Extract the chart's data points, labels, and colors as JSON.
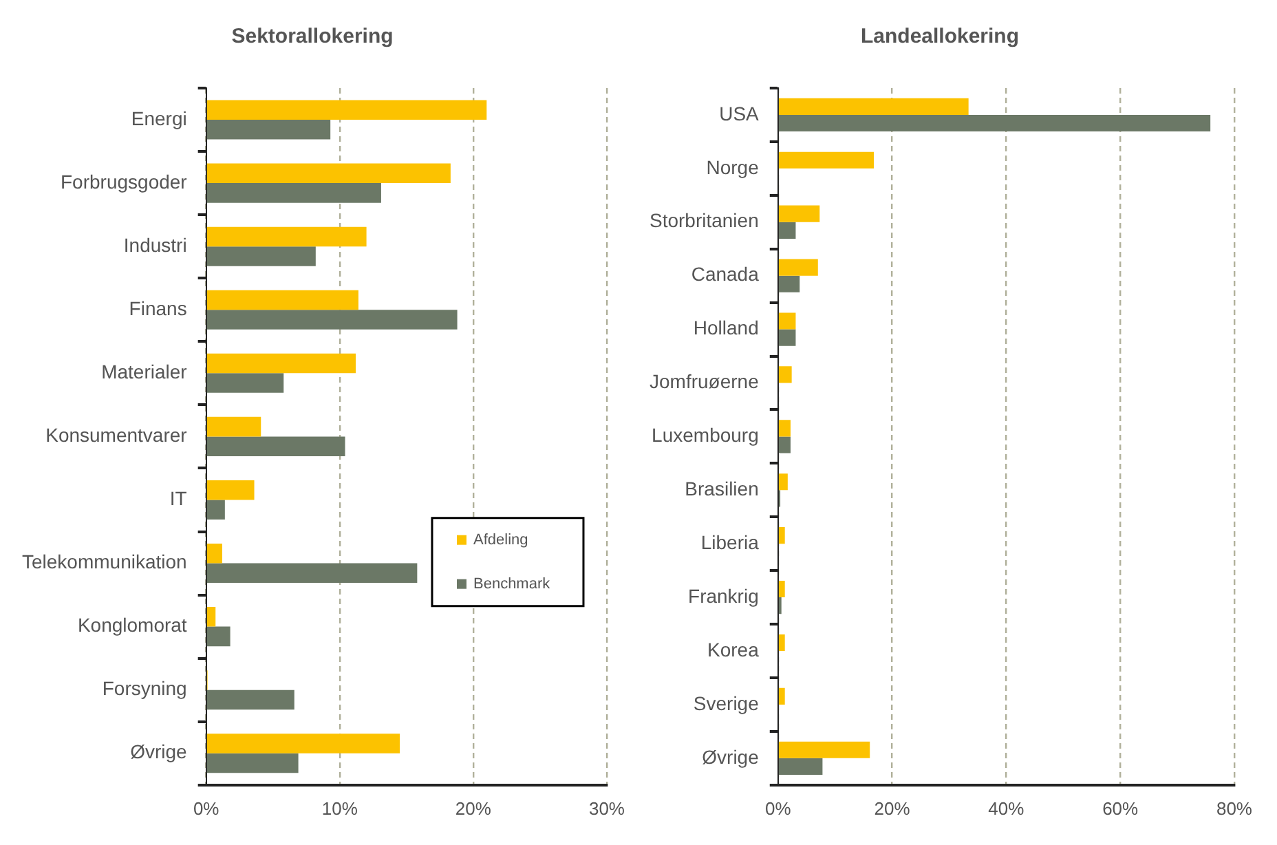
{
  "chart_data": [
    {
      "type": "bar",
      "orientation": "horizontal",
      "title": "Sektorallokering",
      "categories": [
        "Energi",
        "Forbrugsgoder",
        "Industri",
        "Finans",
        "Materialer",
        "Konsumentvarer",
        "IT",
        "Telekommunikation",
        "Konglomorat",
        "Forsyning",
        "Øvrige"
      ],
      "series": [
        {
          "name": "Afdeling",
          "color": "#fcc200",
          "values": [
            21.0,
            18.3,
            12.0,
            11.4,
            11.2,
            4.1,
            3.6,
            1.2,
            0.7,
            0.1,
            14.5
          ]
        },
        {
          "name": "Benchmark",
          "color": "#6b7866",
          "values": [
            9.3,
            13.1,
            8.2,
            18.8,
            5.8,
            10.4,
            1.4,
            15.8,
            1.8,
            6.6,
            6.9
          ]
        }
      ],
      "xlim": [
        0,
        30
      ],
      "xticks": [
        {
          "value": 0,
          "label": "0%"
        },
        {
          "value": 10,
          "label": "10%"
        },
        {
          "value": 20,
          "label": "20%"
        },
        {
          "value": 30,
          "label": "30%"
        }
      ],
      "grid": "x",
      "legend": "right"
    },
    {
      "type": "bar",
      "orientation": "horizontal",
      "title": "Landeallokering",
      "categories": [
        "USA",
        "Norge",
        "Storbritanien",
        "Canada",
        "Holland",
        "Jomfruøerne",
        "Luxembourg",
        "Brasilien",
        "Liberia",
        "Frankrig",
        "Korea",
        "Sverige",
        "Øvrige"
      ],
      "series": [
        {
          "color": "#fcc200",
          "values": [
            33.4,
            16.8,
            7.3,
            7.0,
            3.1,
            2.4,
            2.2,
            1.7,
            1.2,
            1.2,
            1.2,
            1.2,
            16.1
          ]
        },
        {
          "color": "#6b7866",
          "values": [
            75.8,
            0,
            3.1,
            3.8,
            3.1,
            0,
            2.2,
            0.4,
            0,
            0.6,
            0,
            0,
            7.8
          ]
        }
      ],
      "xlim": [
        0,
        80
      ],
      "xticks": [
        {
          "value": 0,
          "label": "0%"
        },
        {
          "value": 20,
          "label": "20%"
        },
        {
          "value": 40,
          "label": "40%"
        },
        {
          "value": 60,
          "label": "60%"
        },
        {
          "value": 80,
          "label": "80%"
        }
      ],
      "grid": "x",
      "legend": false
    }
  ]
}
